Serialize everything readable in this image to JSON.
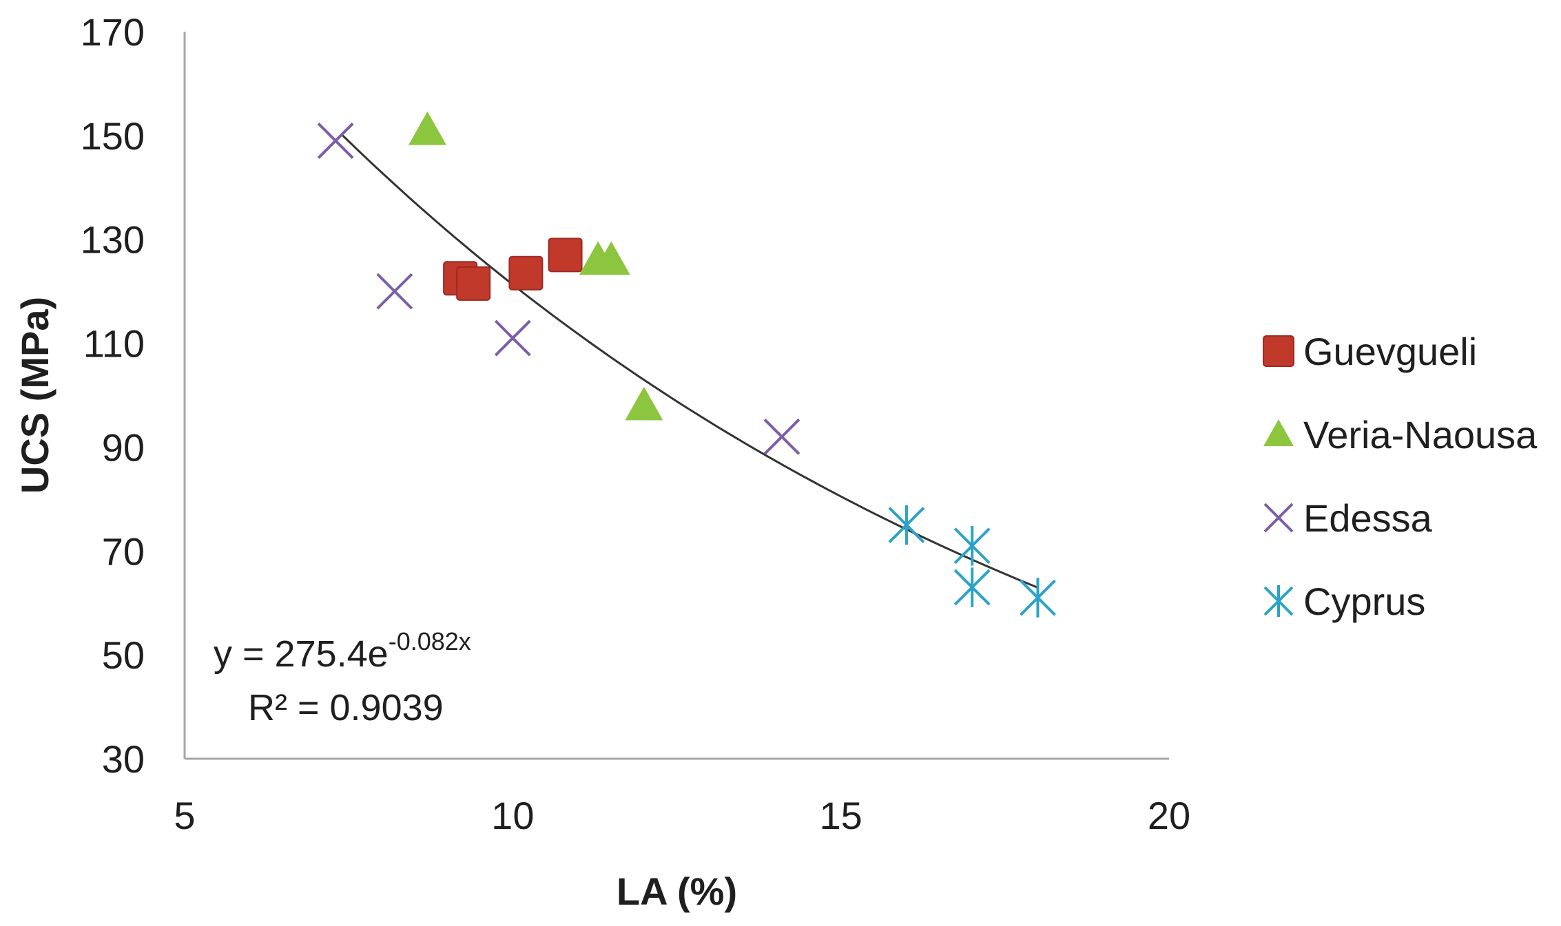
{
  "chart_data": {
    "type": "scatter",
    "title": "",
    "xlabel": "LA (%)",
    "ylabel": "UCS (MPa)",
    "xlim": [
      5,
      20
    ],
    "ylim": [
      30,
      170
    ],
    "xticks": [
      "5",
      "10",
      "15",
      "20"
    ],
    "yticks": [
      "30",
      "50",
      "70",
      "90",
      "110",
      "130",
      "150",
      "170"
    ],
    "grid": false,
    "legend_position": "right",
    "series": [
      {
        "name": "Guevgueli",
        "marker": "square",
        "color": "#c0392b",
        "points": [
          [
            9.2,
            122.5
          ],
          [
            9.4,
            121.5
          ],
          [
            10.2,
            123.5
          ],
          [
            10.8,
            127
          ]
        ]
      },
      {
        "name": "Veria-Naousa",
        "marker": "triangle",
        "color": "#8cc63f",
        "points": [
          [
            8.7,
            151
          ],
          [
            11.3,
            126
          ],
          [
            11.5,
            126
          ],
          [
            12.0,
            98
          ]
        ]
      },
      {
        "name": "Edessa",
        "marker": "x",
        "color": "#7b5ea7",
        "points": [
          [
            7.3,
            149
          ],
          [
            8.2,
            120
          ],
          [
            10.0,
            111
          ],
          [
            14.1,
            92
          ]
        ]
      },
      {
        "name": "Cyprus",
        "marker": "asterisk",
        "color": "#2aa3c8",
        "points": [
          [
            16.0,
            75
          ],
          [
            17.0,
            71
          ],
          [
            17.0,
            63
          ],
          [
            18.0,
            61
          ]
        ]
      }
    ],
    "trendline": {
      "type": "exponential",
      "a": 275.4,
      "b": -0.082,
      "x_range": [
        7.4,
        18.0
      ],
      "color": "#333333"
    },
    "annotations": {
      "equation_base": "y = 275.4e",
      "equation_exponent": "-0.082x",
      "r_squared": "R² = 0.9039"
    }
  }
}
